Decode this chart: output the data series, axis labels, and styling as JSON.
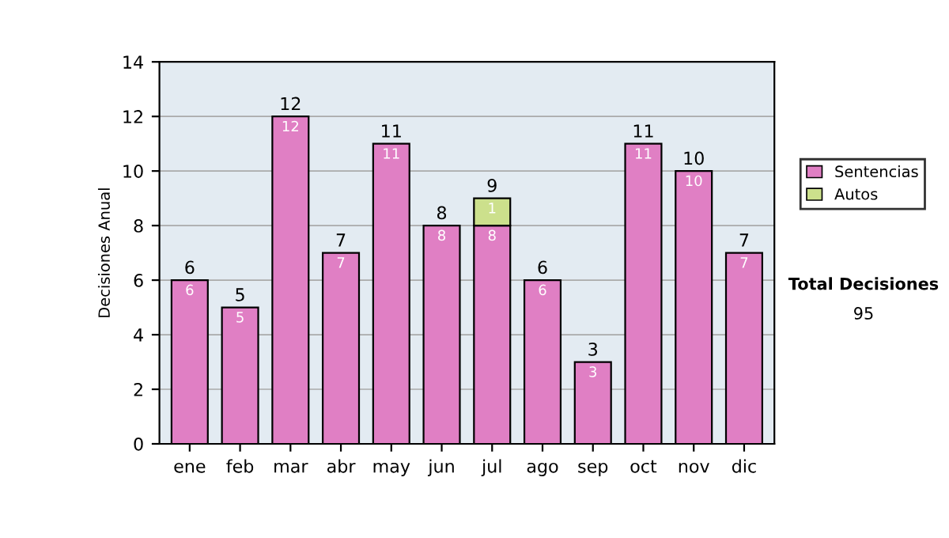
{
  "chart_data": {
    "type": "bar",
    "stacked": true,
    "ylabel": "Decisiones Anual",
    "categories": [
      "ene",
      "feb",
      "mar",
      "abr",
      "may",
      "jun",
      "jul",
      "ago",
      "sep",
      "oct",
      "nov",
      "dic"
    ],
    "series": [
      {
        "name": "Sentencias",
        "color": "#e07fc4",
        "values": [
          6,
          5,
          12,
          7,
          11,
          8,
          8,
          6,
          3,
          11,
          10,
          7
        ],
        "value_labels": [
          "6",
          "5",
          "12",
          "7",
          "11",
          "8",
          "8",
          "6",
          "3",
          "11",
          "10",
          "7"
        ]
      },
      {
        "name": "Autos",
        "color": "#cce08c",
        "values": [
          null,
          null,
          null,
          null,
          null,
          null,
          1,
          null,
          null,
          null,
          null,
          null
        ],
        "value_labels": [
          null,
          null,
          null,
          null,
          null,
          null,
          "1",
          null,
          null,
          null,
          null,
          null
        ]
      }
    ],
    "totals": [
      "6",
      "5",
      "12",
      "7",
      "11",
      "8",
      "9",
      "6",
      "3",
      "11",
      "10",
      "7"
    ],
    "ylim": [
      0,
      14
    ],
    "yticks": [
      0,
      2,
      4,
      6,
      8,
      10,
      12,
      14
    ],
    "grid": "y",
    "legend": "right",
    "annotations": [
      "Total Decisiones",
      "95"
    ]
  }
}
